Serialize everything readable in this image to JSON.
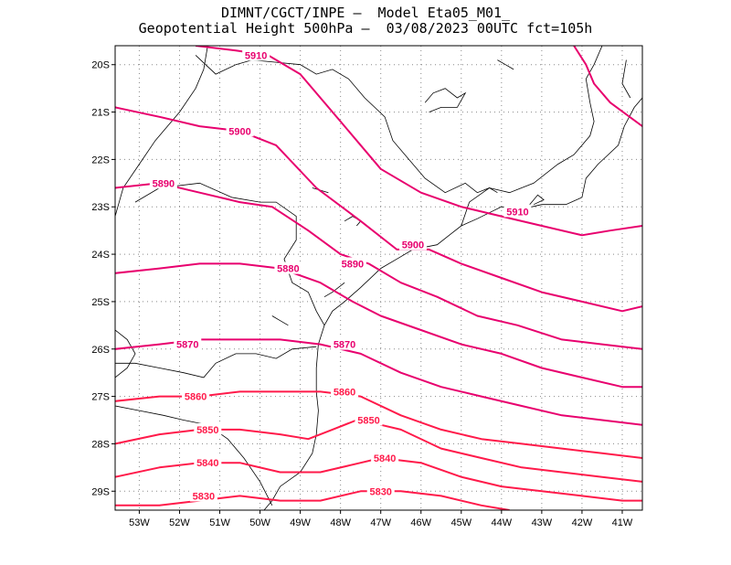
{
  "title_line1": "DIMNT/CGCT/INPE —  Model Eta05_M01_",
  "title_line2": "Geopotential Height 500hPa —  03/08/2023 00UTC fct=105h",
  "colors": {
    "contour": "#e8006e",
    "contour_alt": "#ff1a4a",
    "coast": "#000000",
    "grid": "#888888"
  },
  "map": {
    "lon_range": [
      -53.6,
      -40.5
    ],
    "lat_range": [
      -29.4,
      -19.6
    ],
    "x_ticks": [
      {
        "lon": -53,
        "label": "53W"
      },
      {
        "lon": -52,
        "label": "52W"
      },
      {
        "lon": -51,
        "label": "51W"
      },
      {
        "lon": -50,
        "label": "50W"
      },
      {
        "lon": -49,
        "label": "49W"
      },
      {
        "lon": -48,
        "label": "48W"
      },
      {
        "lon": -47,
        "label": "47W"
      },
      {
        "lon": -46,
        "label": "46W"
      },
      {
        "lon": -45,
        "label": "45W"
      },
      {
        "lon": -44,
        "label": "44W"
      },
      {
        "lon": -43,
        "label": "43W"
      },
      {
        "lon": -42,
        "label": "42W"
      },
      {
        "lon": -41,
        "label": "41W"
      }
    ],
    "y_ticks": [
      {
        "lat": -20,
        "label": "20S"
      },
      {
        "lat": -21,
        "label": "21S"
      },
      {
        "lat": -22,
        "label": "22S"
      },
      {
        "lat": -23,
        "label": "23S"
      },
      {
        "lat": -24,
        "label": "24S"
      },
      {
        "lat": -25,
        "label": "25S"
      },
      {
        "lat": -26,
        "label": "26S"
      },
      {
        "lat": -27,
        "label": "27S"
      },
      {
        "lat": -28,
        "label": "28S"
      },
      {
        "lat": -29,
        "label": "29S"
      }
    ]
  },
  "contours": [
    {
      "value": 5910,
      "label": "5910",
      "labels_at": [
        [
          -50.1,
          -19.8
        ],
        [
          -43.6,
          -23.1
        ]
      ],
      "points": [
        [
          -51.6,
          -19.6
        ],
        [
          -50.6,
          -19.7
        ],
        [
          -49.8,
          -19.8
        ],
        [
          -49.0,
          -20.2
        ],
        [
          -48.0,
          -21.2
        ],
        [
          -47.0,
          -22.2
        ],
        [
          -46.0,
          -22.7
        ],
        [
          -45.0,
          -23.0
        ],
        [
          -44.0,
          -23.2
        ],
        [
          -43.0,
          -23.4
        ],
        [
          -42.0,
          -23.6
        ],
        [
          -41.3,
          -23.5
        ],
        [
          -40.5,
          -23.4
        ]
      ]
    },
    {
      "value": 5910,
      "label": "",
      "labels_at": [],
      "points": [
        [
          -42.2,
          -19.6
        ],
        [
          -41.9,
          -20.0
        ],
        [
          -41.7,
          -20.4
        ],
        [
          -41.3,
          -20.8
        ],
        [
          -40.5,
          -21.3
        ]
      ]
    },
    {
      "value": 5900,
      "label": "5900",
      "labels_at": [
        [
          -50.5,
          -21.4
        ],
        [
          -46.2,
          -23.8
        ]
      ],
      "points": [
        [
          -53.6,
          -20.9
        ],
        [
          -52.5,
          -21.1
        ],
        [
          -51.5,
          -21.3
        ],
        [
          -50.5,
          -21.4
        ],
        [
          -49.6,
          -21.7
        ],
        [
          -48.6,
          -22.6
        ],
        [
          -47.5,
          -23.3
        ],
        [
          -46.6,
          -23.9
        ],
        [
          -45.8,
          -23.9
        ],
        [
          -45.0,
          -24.2
        ],
        [
          -44.0,
          -24.5
        ],
        [
          -43.0,
          -24.8
        ],
        [
          -42.0,
          -25.0
        ],
        [
          -41.0,
          -25.2
        ],
        [
          -40.5,
          -25.1
        ]
      ]
    },
    {
      "value": 5890,
      "label": "5890",
      "labels_at": [
        [
          -52.4,
          -22.5
        ],
        [
          -47.7,
          -24.2
        ]
      ],
      "points": [
        [
          -53.6,
          -22.6
        ],
        [
          -52.5,
          -22.5
        ],
        [
          -51.5,
          -22.7
        ],
        [
          -50.5,
          -22.9
        ],
        [
          -49.7,
          -23.0
        ],
        [
          -48.8,
          -23.5
        ],
        [
          -48.0,
          -24.0
        ],
        [
          -47.3,
          -24.2
        ],
        [
          -46.5,
          -24.6
        ],
        [
          -45.6,
          -24.9
        ],
        [
          -44.6,
          -25.3
        ],
        [
          -43.6,
          -25.5
        ],
        [
          -42.5,
          -25.8
        ],
        [
          -41.5,
          -25.9
        ],
        [
          -40.5,
          -26.0
        ]
      ]
    },
    {
      "value": 5880,
      "label": "5880",
      "labels_at": [
        [
          -49.3,
          -24.3
        ]
      ],
      "points": [
        [
          -53.6,
          -24.4
        ],
        [
          -52.5,
          -24.3
        ],
        [
          -51.5,
          -24.2
        ],
        [
          -50.5,
          -24.2
        ],
        [
          -49.5,
          -24.3
        ],
        [
          -48.5,
          -24.6
        ],
        [
          -47.7,
          -25.0
        ],
        [
          -47.0,
          -25.3
        ],
        [
          -46.0,
          -25.6
        ],
        [
          -45.0,
          -25.9
        ],
        [
          -44.0,
          -26.1
        ],
        [
          -43.0,
          -26.4
        ],
        [
          -42.0,
          -26.6
        ],
        [
          -41.0,
          -26.8
        ],
        [
          -40.5,
          -26.8
        ]
      ]
    },
    {
      "value": 5870,
      "label": "5870",
      "labels_at": [
        [
          -51.8,
          -25.9
        ],
        [
          -47.9,
          -25.9
        ]
      ],
      "points": [
        [
          -53.6,
          -26.0
        ],
        [
          -52.5,
          -25.9
        ],
        [
          -51.5,
          -25.8
        ],
        [
          -50.5,
          -25.8
        ],
        [
          -49.5,
          -25.8
        ],
        [
          -48.5,
          -25.9
        ],
        [
          -47.5,
          -26.1
        ],
        [
          -46.5,
          -26.5
        ],
        [
          -45.5,
          -26.8
        ],
        [
          -44.5,
          -27.0
        ],
        [
          -43.5,
          -27.2
        ],
        [
          -42.5,
          -27.4
        ],
        [
          -41.5,
          -27.5
        ],
        [
          -40.5,
          -27.6
        ]
      ]
    },
    {
      "value": 5860,
      "label": "5860",
      "labels_at": [
        [
          -51.6,
          -27.0
        ],
        [
          -47.9,
          -26.9
        ]
      ],
      "points": [
        [
          -53.6,
          -27.1
        ],
        [
          -52.5,
          -27.0
        ],
        [
          -51.5,
          -27.0
        ],
        [
          -50.5,
          -26.9
        ],
        [
          -49.5,
          -26.9
        ],
        [
          -48.5,
          -26.9
        ],
        [
          -47.5,
          -27.0
        ],
        [
          -46.5,
          -27.4
        ],
        [
          -45.5,
          -27.7
        ],
        [
          -44.5,
          -27.9
        ],
        [
          -43.5,
          -28.0
        ],
        [
          -42.5,
          -28.1
        ],
        [
          -41.5,
          -28.2
        ],
        [
          -40.5,
          -28.3
        ]
      ]
    },
    {
      "value": 5850,
      "label": "5850",
      "labels_at": [
        [
          -51.3,
          -27.7
        ],
        [
          -47.3,
          -27.5
        ]
      ],
      "points": [
        [
          -53.6,
          -28.0
        ],
        [
          -52.5,
          -27.8
        ],
        [
          -51.5,
          -27.7
        ],
        [
          -50.5,
          -27.7
        ],
        [
          -49.5,
          -27.8
        ],
        [
          -48.8,
          -27.9
        ],
        [
          -48.2,
          -27.7
        ],
        [
          -47.6,
          -27.5
        ],
        [
          -47.0,
          -27.6
        ],
        [
          -46.5,
          -27.7
        ],
        [
          -45.5,
          -28.1
        ],
        [
          -44.5,
          -28.3
        ],
        [
          -43.5,
          -28.5
        ],
        [
          -42.5,
          -28.6
        ],
        [
          -41.5,
          -28.7
        ],
        [
          -40.5,
          -28.8
        ]
      ]
    },
    {
      "value": 5840,
      "label": "5840",
      "labels_at": [
        [
          -51.3,
          -28.4
        ],
        [
          -46.9,
          -28.3
        ]
      ],
      "points": [
        [
          -53.6,
          -28.7
        ],
        [
          -52.5,
          -28.5
        ],
        [
          -51.5,
          -28.4
        ],
        [
          -50.5,
          -28.4
        ],
        [
          -49.5,
          -28.6
        ],
        [
          -48.5,
          -28.6
        ],
        [
          -47.5,
          -28.4
        ],
        [
          -47.0,
          -28.3
        ],
        [
          -46.0,
          -28.4
        ],
        [
          -45.0,
          -28.7
        ],
        [
          -44.0,
          -28.9
        ],
        [
          -43.0,
          -29.0
        ],
        [
          -42.0,
          -29.1
        ],
        [
          -41.0,
          -29.2
        ],
        [
          -40.5,
          -29.2
        ]
      ]
    },
    {
      "value": 5830,
      "label": "5830",
      "labels_at": [
        [
          -51.4,
          -29.1
        ],
        [
          -47.0,
          -29.0
        ]
      ],
      "points": [
        [
          -53.6,
          -29.3
        ],
        [
          -52.5,
          -29.3
        ],
        [
          -51.5,
          -29.2
        ],
        [
          -50.5,
          -29.1
        ],
        [
          -49.5,
          -29.2
        ],
        [
          -48.5,
          -29.2
        ],
        [
          -47.5,
          -29.0
        ],
        [
          -46.5,
          -29.0
        ],
        [
          -45.5,
          -29.1
        ],
        [
          -44.5,
          -29.3
        ],
        [
          -43.8,
          -29.4
        ]
      ]
    }
  ],
  "coastline": [
    {
      "name": "coast",
      "points": [
        [
          -49.9,
          -29.4
        ],
        [
          -49.7,
          -29.2
        ],
        [
          -49.5,
          -28.9
        ],
        [
          -49.0,
          -28.6
        ],
        [
          -48.7,
          -28.2
        ],
        [
          -48.6,
          -27.8
        ],
        [
          -48.55,
          -27.3
        ],
        [
          -48.6,
          -26.9
        ],
        [
          -48.6,
          -26.4
        ],
        [
          -48.55,
          -25.9
        ],
        [
          -48.4,
          -25.5
        ],
        [
          -48.2,
          -25.2
        ],
        [
          -47.9,
          -25.0
        ],
        [
          -47.5,
          -24.7
        ],
        [
          -47.0,
          -24.3
        ],
        [
          -46.6,
          -24.1
        ],
        [
          -46.2,
          -23.9
        ],
        [
          -45.6,
          -23.8
        ],
        [
          -45.3,
          -23.6
        ],
        [
          -45.0,
          -23.4
        ],
        [
          -44.6,
          -23.25
        ],
        [
          -44.0,
          -23.0
        ],
        [
          -43.5,
          -23.05
        ],
        [
          -43.0,
          -22.95
        ],
        [
          -42.4,
          -22.95
        ],
        [
          -42.0,
          -22.8
        ],
        [
          -41.9,
          -22.4
        ],
        [
          -41.6,
          -22.1
        ],
        [
          -41.1,
          -21.7
        ],
        [
          -40.95,
          -21.3
        ],
        [
          -40.7,
          -20.9
        ],
        [
          -40.5,
          -20.7
        ]
      ]
    },
    {
      "name": "border-mg-sp",
      "points": [
        [
          -53.1,
          -22.9
        ],
        [
          -52.5,
          -22.6
        ],
        [
          -51.5,
          -22.5
        ],
        [
          -50.7,
          -22.8
        ],
        [
          -50.0,
          -22.9
        ],
        [
          -49.6,
          -22.9
        ],
        [
          -49.1,
          -23.2
        ],
        [
          -49.1,
          -23.7
        ],
        [
          -49.4,
          -24.1
        ],
        [
          -49.2,
          -24.6
        ],
        [
          -48.8,
          -24.8
        ],
        [
          -48.6,
          -25.2
        ],
        [
          -48.4,
          -25.5
        ]
      ]
    },
    {
      "name": "border-sp-mg",
      "points": [
        [
          -51.6,
          -19.8
        ],
        [
          -51.1,
          -20.2
        ],
        [
          -50.6,
          -20.0
        ],
        [
          -50.2,
          -19.9
        ],
        [
          -49.6,
          -19.95
        ],
        [
          -49.0,
          -20.0
        ],
        [
          -48.6,
          -20.2
        ],
        [
          -48.2,
          -20.1
        ],
        [
          -47.8,
          -20.3
        ],
        [
          -47.4,
          -20.7
        ],
        [
          -46.9,
          -21.1
        ],
        [
          -46.7,
          -21.6
        ],
        [
          -46.3,
          -22.0
        ],
        [
          -45.9,
          -22.4
        ],
        [
          -45.4,
          -22.7
        ],
        [
          -44.9,
          -22.5
        ],
        [
          -44.6,
          -22.7
        ],
        [
          -44.3,
          -22.6
        ],
        [
          -44.1,
          -22.7
        ]
      ]
    },
    {
      "name": "border-sp-rj",
      "points": [
        [
          -45.0,
          -23.4
        ],
        [
          -44.8,
          -22.9
        ],
        [
          -44.3,
          -22.6
        ],
        [
          -43.8,
          -22.7
        ],
        [
          -43.2,
          -22.5
        ],
        [
          -42.6,
          -22.1
        ],
        [
          -42.2,
          -21.9
        ],
        [
          -41.8,
          -21.5
        ],
        [
          -41.7,
          -21.2
        ],
        [
          -41.8,
          -20.8
        ],
        [
          -41.9,
          -20.3
        ],
        [
          -41.7,
          -20.0
        ],
        [
          -41.5,
          -19.6
        ]
      ]
    },
    {
      "name": "border-ms",
      "points": [
        [
          -53.6,
          -23.2
        ],
        [
          -53.4,
          -22.6
        ],
        [
          -53.0,
          -22.1
        ],
        [
          -52.6,
          -21.6
        ],
        [
          -52.0,
          -21.0
        ],
        [
          -51.6,
          -20.5
        ],
        [
          -51.4,
          -20.1
        ],
        [
          -51.3,
          -19.6
        ]
      ]
    },
    {
      "name": "border-pr-sc",
      "points": [
        [
          -53.6,
          -26.3
        ],
        [
          -53.1,
          -26.3
        ],
        [
          -52.5,
          -26.4
        ],
        [
          -51.9,
          -26.5
        ],
        [
          -51.4,
          -26.6
        ],
        [
          -51.1,
          -26.3
        ],
        [
          -50.6,
          -26.1
        ],
        [
          -50.1,
          -26.1
        ],
        [
          -49.6,
          -26.2
        ],
        [
          -49.2,
          -26.0
        ],
        [
          -48.6,
          -25.95
        ]
      ]
    },
    {
      "name": "border-sc-rs",
      "points": [
        [
          -53.6,
          -27.2
        ],
        [
          -53.0,
          -27.3
        ],
        [
          -52.4,
          -27.4
        ],
        [
          -51.9,
          -27.5
        ],
        [
          -51.3,
          -27.6
        ],
        [
          -50.8,
          -27.9
        ],
        [
          -50.4,
          -28.3
        ],
        [
          -50.0,
          -28.8
        ],
        [
          -49.7,
          -29.3
        ]
      ]
    },
    {
      "name": "border-west",
      "points": [
        [
          -53.6,
          -25.6
        ],
        [
          -53.3,
          -25.8
        ],
        [
          -53.1,
          -26.1
        ],
        [
          -53.3,
          -26.4
        ],
        [
          -53.6,
          -26.6
        ]
      ]
    },
    {
      "name": "bay-rio",
      "points": [
        [
          -43.3,
          -22.95
        ],
        [
          -43.1,
          -22.75
        ],
        [
          -42.95,
          -22.85
        ],
        [
          -43.2,
          -22.95
        ]
      ]
    },
    {
      "name": "river",
      "points": [
        [
          -45.9,
          -20.8
        ],
        [
          -45.7,
          -20.6
        ],
        [
          -45.4,
          -20.5
        ],
        [
          -45.1,
          -20.7
        ],
        [
          -44.9,
          -20.6
        ],
        [
          -45.1,
          -20.9
        ],
        [
          -45.5,
          -20.9
        ],
        [
          -45.8,
          -21.0
        ]
      ]
    },
    {
      "name": "lake-sp",
      "points": [
        [
          -48.7,
          -22.6
        ],
        [
          -48.5,
          -22.65
        ],
        [
          -48.3,
          -22.7
        ]
      ]
    },
    {
      "name": "lake-pr",
      "points": [
        [
          -47.9,
          -23.3
        ],
        [
          -47.7,
          -23.2
        ],
        [
          -47.5,
          -23.3
        ],
        [
          -47.6,
          -23.4
        ]
      ]
    },
    {
      "name": "lagoon-pr",
      "points": [
        [
          -48.4,
          -24.9
        ],
        [
          -48.2,
          -24.8
        ],
        [
          -47.9,
          -24.6
        ]
      ]
    },
    {
      "name": "lake-sc",
      "points": [
        [
          -49.7,
          -25.3
        ],
        [
          -49.5,
          -25.4
        ],
        [
          -49.3,
          -25.5
        ]
      ]
    },
    {
      "name": "lake-mg",
      "points": [
        [
          -44.1,
          -19.9
        ],
        [
          -43.9,
          -20.0
        ],
        [
          -43.7,
          -20.1
        ]
      ]
    },
    {
      "name": "coast-es",
      "points": [
        [
          -40.9,
          -19.9
        ],
        [
          -41.0,
          -20.4
        ],
        [
          -40.8,
          -20.7
        ]
      ]
    }
  ]
}
